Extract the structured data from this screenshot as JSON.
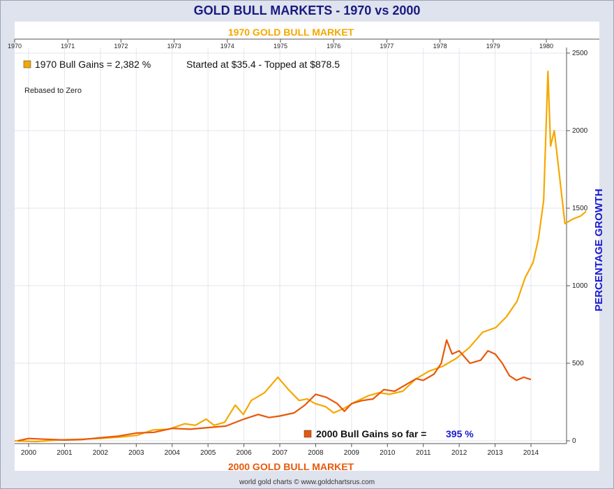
{
  "chart_data": {
    "type": "line",
    "title": "GOLD BULL MARKETS - 1970 vs 2000",
    "top_axis_label": "1970 GOLD BULL MARKET",
    "bottom_axis_label": "2000 GOLD BULL MARKET",
    "ylabel": "PERCENTAGE GROWTH",
    "annotation": "Rebased to Zero",
    "credit": "world gold charts © www.goldchartsrus.com",
    "top_ticks": [
      "1970",
      "1971",
      "1972",
      "1973",
      "1974",
      "1975",
      "1976",
      "1977",
      "1978",
      "1979",
      "1980"
    ],
    "bottom_ticks": [
      "2000",
      "2001",
      "2002",
      "2003",
      "2004",
      "2005",
      "2006",
      "2007",
      "2008",
      "2009",
      "2010",
      "2011",
      "2012",
      "2013",
      "2014"
    ],
    "y_ticks": [
      "0",
      "500",
      "1000",
      "1500",
      "2000",
      "2500"
    ],
    "ylim": [
      0,
      2500
    ],
    "grid": true,
    "series": [
      {
        "name": "1970 Bull Gains",
        "legend_text": "1970 Bull Gains = 2,382 %",
        "note": "Started at $35.4 - Topped at $878.5",
        "color": "#f5a800",
        "x_axis": "top",
        "points": [
          [
            1970.0,
            0
          ],
          [
            1970.4,
            -5
          ],
          [
            1970.8,
            5
          ],
          [
            1971.2,
            10
          ],
          [
            1971.6,
            15
          ],
          [
            1972.0,
            25
          ],
          [
            1972.3,
            35
          ],
          [
            1972.6,
            70
          ],
          [
            1972.9,
            75
          ],
          [
            1973.2,
            110
          ],
          [
            1973.4,
            100
          ],
          [
            1973.6,
            140
          ],
          [
            1973.75,
            100
          ],
          [
            1973.95,
            120
          ],
          [
            1974.15,
            230
          ],
          [
            1974.3,
            170
          ],
          [
            1974.45,
            260
          ],
          [
            1974.7,
            310
          ],
          [
            1974.95,
            410
          ],
          [
            1975.15,
            330
          ],
          [
            1975.35,
            260
          ],
          [
            1975.5,
            270
          ],
          [
            1975.65,
            240
          ],
          [
            1975.85,
            220
          ],
          [
            1976.0,
            180
          ],
          [
            1976.2,
            210
          ],
          [
            1976.4,
            250
          ],
          [
            1976.65,
            290
          ],
          [
            1976.85,
            310
          ],
          [
            1977.05,
            300
          ],
          [
            1977.3,
            320
          ],
          [
            1977.55,
            400
          ],
          [
            1977.8,
            450
          ],
          [
            1978.05,
            480
          ],
          [
            1978.3,
            530
          ],
          [
            1978.55,
            600
          ],
          [
            1978.8,
            700
          ],
          [
            1979.05,
            730
          ],
          [
            1979.25,
            800
          ],
          [
            1979.45,
            900
          ],
          [
            1979.6,
            1050
          ],
          [
            1979.75,
            1150
          ],
          [
            1979.85,
            1300
          ],
          [
            1979.95,
            1550
          ],
          [
            1980.03,
            2382
          ],
          [
            1980.08,
            1900
          ],
          [
            1980.15,
            2000
          ],
          [
            1980.25,
            1700
          ],
          [
            1980.35,
            1400
          ],
          [
            1980.5,
            1430
          ],
          [
            1980.65,
            1450
          ],
          [
            1980.75,
            1480
          ]
        ]
      },
      {
        "name": "2000 Bull Gains so far",
        "legend_text": "2000 Bull Gains so far =",
        "legend_value": "395 %",
        "color": "#e8580a",
        "x_axis": "bottom",
        "points": [
          [
            1999.7,
            0
          ],
          [
            2000.0,
            15
          ],
          [
            2000.5,
            10
          ],
          [
            2001.0,
            5
          ],
          [
            2001.5,
            8
          ],
          [
            2002.0,
            20
          ],
          [
            2002.5,
            30
          ],
          [
            2003.0,
            50
          ],
          [
            2003.5,
            55
          ],
          [
            2004.0,
            80
          ],
          [
            2004.5,
            75
          ],
          [
            2005.0,
            85
          ],
          [
            2005.5,
            95
          ],
          [
            2006.0,
            140
          ],
          [
            2006.4,
            170
          ],
          [
            2006.7,
            150
          ],
          [
            2007.0,
            160
          ],
          [
            2007.4,
            180
          ],
          [
            2007.7,
            230
          ],
          [
            2008.0,
            300
          ],
          [
            2008.3,
            280
          ],
          [
            2008.6,
            240
          ],
          [
            2008.8,
            190
          ],
          [
            2009.0,
            240
          ],
          [
            2009.3,
            260
          ],
          [
            2009.6,
            270
          ],
          [
            2009.9,
            330
          ],
          [
            2010.2,
            320
          ],
          [
            2010.5,
            360
          ],
          [
            2010.8,
            400
          ],
          [
            2011.0,
            390
          ],
          [
            2011.3,
            430
          ],
          [
            2011.5,
            500
          ],
          [
            2011.65,
            650
          ],
          [
            2011.8,
            560
          ],
          [
            2012.0,
            580
          ],
          [
            2012.3,
            500
          ],
          [
            2012.6,
            520
          ],
          [
            2012.8,
            580
          ],
          [
            2013.0,
            560
          ],
          [
            2013.2,
            500
          ],
          [
            2013.4,
            420
          ],
          [
            2013.6,
            390
          ],
          [
            2013.8,
            410
          ],
          [
            2014.0,
            395
          ]
        ]
      }
    ]
  }
}
